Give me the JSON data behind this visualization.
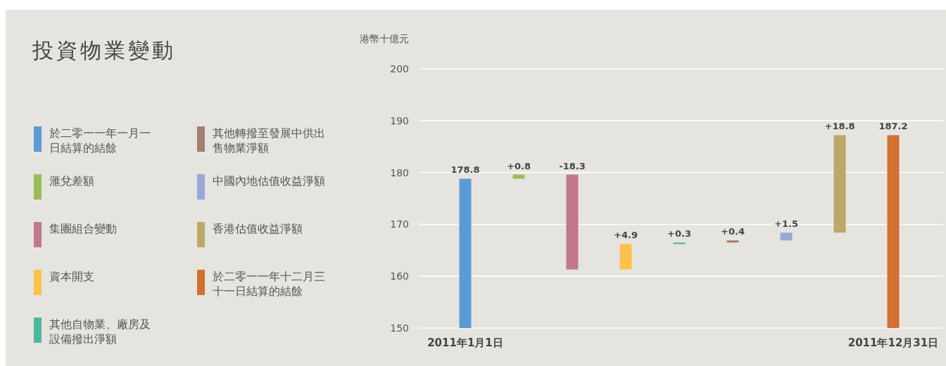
{
  "chart_data": {
    "type": "bar",
    "title": "投資物業變動",
    "ylabel": "港幣十億元",
    "categories": [
      "2011年1月1日",
      null,
      null,
      null,
      null,
      null,
      null,
      null,
      "2011年12月31日"
    ],
    "series": [
      {
        "name": "於二零一一年一月一日結算的結餘",
        "color": "#5b9bd5",
        "values": [
          28.8,
          null,
          null,
          null,
          null,
          null,
          null,
          null,
          null
        ],
        "base": [
          150,
          null,
          null,
          null,
          null,
          null,
          null,
          null,
          null
        ]
      },
      {
        "name": "滙兌差額",
        "color": "#9bbb59",
        "values": [
          null,
          0.8,
          null,
          null,
          null,
          null,
          null,
          null,
          null
        ],
        "base": [
          null,
          178.8,
          null,
          null,
          null,
          null,
          null,
          null,
          null
        ]
      },
      {
        "name": "集團組合變動",
        "color": "#c0788a",
        "values": [
          null,
          null,
          -18.3,
          null,
          null,
          null,
          null,
          null,
          null
        ],
        "base": [
          null,
          null,
          179.6,
          null,
          null,
          null,
          null,
          null,
          null
        ]
      },
      {
        "name": "資本開支",
        "color": "#ffc04c",
        "values": [
          null,
          null,
          null,
          4.9,
          null,
          null,
          null,
          null,
          null
        ],
        "base": [
          null,
          null,
          null,
          161.3,
          null,
          null,
          null,
          null,
          null
        ]
      },
      {
        "name": "其他自物業、廠房及設備撥出淨額",
        "color": "#4bb9a0",
        "values": [
          null,
          null,
          null,
          null,
          0.3,
          null,
          null,
          null,
          null
        ],
        "base": [
          null,
          null,
          null,
          null,
          166.2,
          null,
          null,
          null,
          null
        ]
      },
      {
        "name": "其他轉撥至發展中供出售物業淨額",
        "color": "#a47e6e",
        "values": [
          null,
          null,
          null,
          null,
          null,
          0.4,
          null,
          null,
          null
        ],
        "base": [
          null,
          null,
          null,
          null,
          null,
          166.5,
          null,
          null,
          null
        ]
      },
      {
        "name": "中國內地估值收益淨額",
        "color": "#9ba6d8",
        "values": [
          null,
          null,
          null,
          null,
          null,
          null,
          1.5,
          null,
          null
        ],
        "base": [
          null,
          null,
          null,
          null,
          null,
          null,
          166.9,
          null,
          null
        ]
      },
      {
        "name": "香港估值收益淨額",
        "color": "#bda86a",
        "values": [
          null,
          null,
          null,
          null,
          null,
          null,
          null,
          18.8,
          null
        ],
        "base": [
          null,
          null,
          null,
          null,
          null,
          null,
          null,
          168.4,
          null
        ]
      },
      {
        "name": "於二零一一年十二月三十一日結算的結餘",
        "color": "#d46f32",
        "values": [
          null,
          null,
          null,
          null,
          null,
          null,
          null,
          null,
          37.2
        ],
        "base": [
          null,
          null,
          null,
          null,
          null,
          null,
          null,
          null,
          150
        ]
      }
    ],
    "value_labels": [
      "178.8",
      "+0.8",
      "-18.3",
      "+4.9",
      "+0.3",
      "+0.4",
      "+1.5",
      "+18.8",
      "187.2"
    ],
    "ylim": [
      150,
      200
    ],
    "yticks": [
      150,
      160,
      170,
      180,
      190,
      200
    ],
    "grid": "y",
    "legend": "left"
  }
}
